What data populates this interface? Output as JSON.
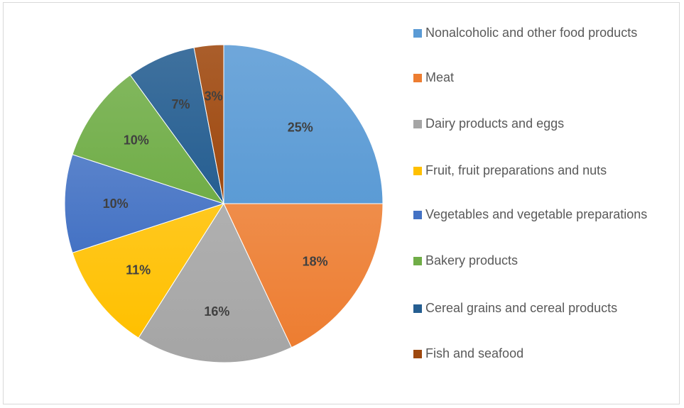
{
  "chart_data": {
    "type": "pie",
    "categories": [
      "Nonalcoholic and other food products",
      "Meat",
      "Dairy products and eggs",
      "Fruit, fruit preparations and nuts",
      "Vegetables and vegetable preparations",
      "Bakery products",
      "Cereal grains and cereal products",
      "Fish and seafood"
    ],
    "values": [
      25,
      18,
      16,
      11,
      10,
      10,
      7,
      3
    ],
    "data_labels": [
      "25%",
      "18%",
      "16%",
      "11%",
      "10%",
      "10%",
      "7%",
      "3%"
    ],
    "colors": [
      "#5b9bd5",
      "#ed7d31",
      "#a5a5a5",
      "#ffc000",
      "#4472c4",
      "#70ad47",
      "#255e91",
      "#9e480e"
    ],
    "title": "",
    "legend_position": "right",
    "start_angle": "12 o'clock, clockwise"
  }
}
